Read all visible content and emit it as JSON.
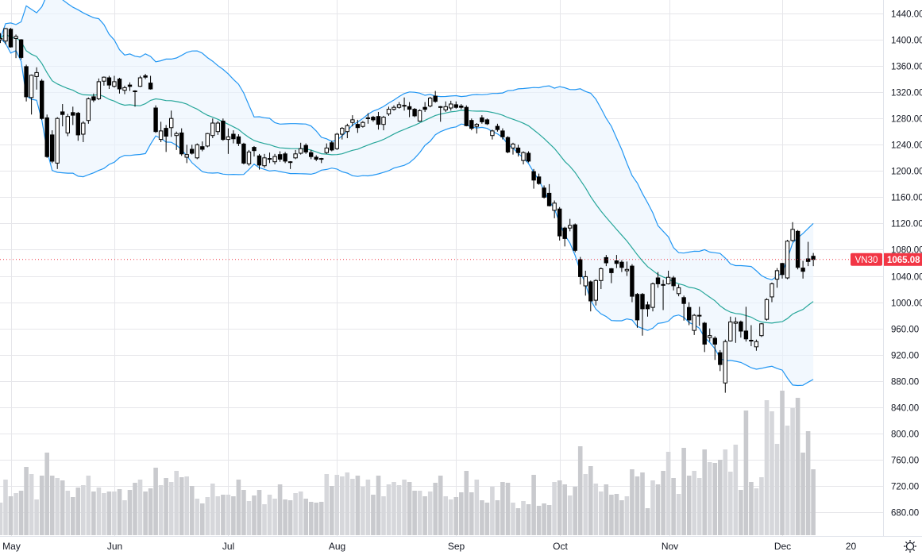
{
  "chart_data": {
    "type": "candlestick",
    "symbol": "VN30",
    "last_price": "1065.08",
    "price_axis": {
      "ylim": [
        680,
        1440
      ],
      "ticks": [
        "1440.00",
        "1400.00",
        "1360.00",
        "1320.00",
        "1280.00",
        "1240.00",
        "1200.00",
        "1160.00",
        "1120.00",
        "1080.00",
        "1040.00",
        "1000.00",
        "960.00",
        "920.00",
        "880.00",
        "840.00",
        "800.00",
        "760.00",
        "720.00",
        "680.00"
      ]
    },
    "x_ticks": [
      {
        "label": "May",
        "index": 2
      },
      {
        "label": "Jun",
        "index": 22
      },
      {
        "label": "Jul",
        "index": 44
      },
      {
        "label": "Aug",
        "index": 65
      },
      {
        "label": "Sep",
        "index": 88
      },
      {
        "label": "Oct",
        "index": 108
      },
      {
        "label": "Nov",
        "index": 129.2
      },
      {
        "label": "Dec",
        "index": 151
      },
      {
        "label": "20",
        "index": 164.2
      }
    ],
    "indicators": {
      "bollinger": {
        "period": 20,
        "stddev": 2
      }
    },
    "grid": true,
    "colors": {
      "up_body": "#ffffff",
      "down_body": "#000000",
      "wick": "#000000",
      "band": "#2196f3",
      "band_fill": "#e9f3fd",
      "basis": "#26a69a",
      "volume_up": "#d6d7db",
      "volume_down": "#c9cace",
      "price_label": "#f23645",
      "grid": "#e6e6ea"
    },
    "ohlc": [
      [
        1400,
        1410,
        1395,
        1402
      ],
      [
        1398,
        1418,
        1393,
        1417
      ],
      [
        1416,
        1418,
        1388,
        1389
      ],
      [
        1402,
        1408,
        1372,
        1405
      ],
      [
        1400,
        1401,
        1370,
        1373
      ],
      [
        1359,
        1362,
        1306,
        1313
      ],
      [
        1312,
        1347,
        1286,
        1346
      ],
      [
        1344,
        1358,
        1324,
        1350
      ],
      [
        1337,
        1340,
        1278,
        1280
      ],
      [
        1281,
        1286,
        1220,
        1222
      ],
      [
        1255,
        1262,
        1212,
        1215
      ],
      [
        1212,
        1282,
        1203,
        1280
      ],
      [
        1290,
        1302,
        1268,
        1286
      ],
      [
        1258,
        1287,
        1253,
        1283
      ],
      [
        1289,
        1298,
        1270,
        1285
      ],
      [
        1288,
        1290,
        1246,
        1255
      ],
      [
        1256,
        1276,
        1244,
        1273
      ],
      [
        1277,
        1312,
        1272,
        1310
      ],
      [
        1313,
        1318,
        1305,
        1308
      ],
      [
        1310,
        1341,
        1308,
        1336
      ],
      [
        1337,
        1344,
        1330,
        1343
      ],
      [
        1342,
        1345,
        1325,
        1331
      ],
      [
        1329,
        1345,
        1327,
        1336
      ],
      [
        1340,
        1342,
        1318,
        1325
      ],
      [
        1323,
        1330,
        1317,
        1327
      ],
      [
        1331,
        1335,
        1322,
        1329
      ],
      [
        1322,
        1323,
        1298,
        1321
      ],
      [
        1329,
        1345,
        1328,
        1342
      ],
      [
        1345,
        1348,
        1340,
        1343
      ],
      [
        1334,
        1345,
        1324,
        1325
      ],
      [
        1296,
        1300,
        1258,
        1260
      ],
      [
        1248,
        1275,
        1244,
        1261
      ],
      [
        1265,
        1270,
        1229,
        1253
      ],
      [
        1266,
        1292,
        1252,
        1280
      ],
      [
        1254,
        1260,
        1232,
        1257
      ],
      [
        1258,
        1265,
        1223,
        1226
      ],
      [
        1221,
        1240,
        1212,
        1225
      ],
      [
        1233,
        1240,
        1225,
        1227
      ],
      [
        1220,
        1242,
        1218,
        1240
      ],
      [
        1237,
        1245,
        1230,
        1233
      ],
      [
        1238,
        1258,
        1236,
        1257
      ],
      [
        1254,
        1280,
        1250,
        1273
      ],
      [
        1260,
        1276,
        1255,
        1273
      ],
      [
        1276,
        1280,
        1246,
        1248
      ],
      [
        1248,
        1265,
        1226,
        1252
      ],
      [
        1256,
        1262,
        1242,
        1249
      ],
      [
        1252,
        1256,
        1238,
        1242
      ],
      [
        1241,
        1243,
        1210,
        1212
      ],
      [
        1211,
        1232,
        1208,
        1229
      ],
      [
        1236,
        1238,
        1222,
        1231
      ],
      [
        1223,
        1226,
        1202,
        1209
      ],
      [
        1208,
        1226,
        1205,
        1220
      ],
      [
        1218,
        1228,
        1212,
        1219
      ],
      [
        1214,
        1226,
        1210,
        1222
      ],
      [
        1225,
        1230,
        1214,
        1218
      ],
      [
        1226,
        1229,
        1212,
        1215
      ],
      [
        1214,
        1215,
        1203,
        1213
      ],
      [
        1220,
        1232,
        1218,
        1226
      ],
      [
        1227,
        1243,
        1225,
        1234
      ],
      [
        1239,
        1242,
        1226,
        1229
      ],
      [
        1228,
        1232,
        1218,
        1222
      ],
      [
        1221,
        1224,
        1215,
        1218
      ],
      [
        1219,
        1220,
        1212,
        1218
      ],
      [
        1228,
        1242,
        1226,
        1235
      ],
      [
        1243,
        1246,
        1230,
        1232
      ],
      [
        1234,
        1258,
        1232,
        1256
      ],
      [
        1256,
        1267,
        1248,
        1265
      ],
      [
        1260,
        1272,
        1250,
        1269
      ],
      [
        1274,
        1285,
        1268,
        1278
      ],
      [
        1271,
        1278,
        1258,
        1266
      ],
      [
        1268,
        1276,
        1266,
        1274
      ],
      [
        1280,
        1288,
        1272,
        1281
      ],
      [
        1282,
        1284,
        1275,
        1278
      ],
      [
        1283,
        1290,
        1263,
        1271
      ],
      [
        1271,
        1284,
        1262,
        1282
      ],
      [
        1287,
        1298,
        1284,
        1294
      ],
      [
        1294,
        1300,
        1292,
        1297
      ],
      [
        1297,
        1305,
        1295,
        1301
      ],
      [
        1299,
        1312,
        1292,
        1300
      ],
      [
        1298,
        1305,
        1282,
        1294
      ],
      [
        1294,
        1296,
        1282,
        1284
      ],
      [
        1276,
        1294,
        1275,
        1292
      ],
      [
        1297,
        1305,
        1290,
        1294
      ],
      [
        1299,
        1313,
        1297,
        1311
      ],
      [
        1314,
        1322,
        1304,
        1306
      ],
      [
        1298,
        1299,
        1275,
        1297
      ],
      [
        1293,
        1306,
        1290,
        1298
      ],
      [
        1296,
        1307,
        1292,
        1302
      ],
      [
        1301,
        1306,
        1295,
        1297
      ],
      [
        1299,
        1302,
        1294,
        1297
      ],
      [
        1297,
        1300,
        1268,
        1269
      ],
      [
        1277,
        1280,
        1262,
        1265
      ],
      [
        1268,
        1273,
        1257,
        1271
      ],
      [
        1281,
        1285,
        1272,
        1275
      ],
      [
        1278,
        1280,
        1270,
        1272
      ],
      [
        1254,
        1263,
        1248,
        1261
      ],
      [
        1268,
        1272,
        1260,
        1263
      ],
      [
        1261,
        1265,
        1248,
        1252
      ],
      [
        1251,
        1253,
        1227,
        1229
      ],
      [
        1235,
        1243,
        1225,
        1241
      ],
      [
        1235,
        1240,
        1222,
        1228
      ],
      [
        1216,
        1230,
        1210,
        1228
      ],
      [
        1227,
        1230,
        1213,
        1215
      ],
      [
        1199,
        1203,
        1173,
        1186
      ],
      [
        1191,
        1196,
        1179,
        1181
      ],
      [
        1174,
        1178,
        1158,
        1160
      ],
      [
        1166,
        1180,
        1146,
        1147
      ],
      [
        1140,
        1155,
        1128,
        1151
      ],
      [
        1142,
        1145,
        1094,
        1101
      ],
      [
        1113,
        1115,
        1085,
        1097
      ],
      [
        1113,
        1127,
        1108,
        1117
      ],
      [
        1118,
        1120,
        1076,
        1079
      ],
      [
        1065,
        1069,
        1027,
        1039
      ],
      [
        1025,
        1048,
        1010,
        1039
      ],
      [
        1031,
        1033,
        986,
        1002
      ],
      [
        1003,
        1035,
        995,
        1033
      ],
      [
        1033,
        1053,
        1020,
        1051
      ],
      [
        1068,
        1072,
        1055,
        1060
      ],
      [
        1051,
        1052,
        1029,
        1045
      ],
      [
        1063,
        1072,
        1052,
        1059
      ],
      [
        1061,
        1064,
        1046,
        1053
      ],
      [
        1048,
        1062,
        1040,
        1050
      ],
      [
        1055,
        1058,
        1000,
        1009
      ],
      [
        1012,
        1014,
        961,
        973
      ],
      [
        1012,
        1014,
        949,
        990
      ],
      [
        996,
        1001,
        978,
        990
      ],
      [
        992,
        1030,
        986,
        1028
      ],
      [
        1037,
        1046,
        1022,
        1028
      ],
      [
        1027,
        1034,
        988,
        1026
      ],
      [
        1028,
        1048,
        1027,
        1038
      ],
      [
        1037,
        1040,
        1018,
        1025
      ],
      [
        1013,
        1027,
        1009,
        1022
      ],
      [
        1007,
        1010,
        972,
        998
      ],
      [
        992,
        1000,
        965,
        973
      ],
      [
        957,
        982,
        950,
        980
      ],
      [
        979,
        993,
        964,
        980
      ],
      [
        968,
        970,
        924,
        936
      ],
      [
        946,
        960,
        940,
        949
      ],
      [
        945,
        948,
        912,
        936
      ],
      [
        923,
        927,
        895,
        905
      ],
      [
        877,
        943,
        862,
        940
      ],
      [
        941,
        978,
        940,
        970
      ],
      [
        968,
        977,
        938,
        970
      ],
      [
        970,
        972,
        946,
        956
      ],
      [
        956,
        993,
        940,
        944
      ],
      [
        942,
        965,
        933,
        941
      ],
      [
        932,
        943,
        926,
        940
      ],
      [
        949,
        968,
        947,
        967
      ],
      [
        974,
        1006,
        972,
        1004
      ],
      [
        1008,
        1030,
        1000,
        1028
      ],
      [
        1035,
        1052,
        1022,
        1048
      ],
      [
        1059,
        1060,
        1036,
        1042
      ],
      [
        1037,
        1095,
        1035,
        1093
      ],
      [
        1094,
        1122,
        1092,
        1111
      ],
      [
        1108,
        1110,
        1050,
        1053
      ],
      [
        1052,
        1063,
        1036,
        1047
      ],
      [
        1066,
        1092,
        1055,
        1062
      ],
      [
        1070,
        1075,
        1055,
        1065.08
      ]
    ],
    "volume": [
      41,
      70,
      49,
      53,
      56,
      86,
      77,
      45,
      75,
      104,
      75,
      72,
      69,
      56,
      48,
      60,
      63,
      75,
      55,
      60,
      53,
      55,
      55,
      58,
      44,
      57,
      66,
      70,
      55,
      59,
      85,
      63,
      72,
      67,
      81,
      73,
      74,
      62,
      46,
      40,
      48,
      65,
      49,
      51,
      51,
      49,
      70,
      57,
      43,
      50,
      57,
      39,
      51,
      46,
      64,
      45,
      44,
      53,
      55,
      46,
      42,
      41,
      42,
      77,
      62,
      76,
      74,
      79,
      71,
      75,
      61,
      70,
      51,
      75,
      49,
      64,
      67,
      63,
      70,
      67,
      56,
      56,
      49,
      55,
      66,
      75,
      49,
      45,
      48,
      54,
      81,
      54,
      70,
      44,
      41,
      61,
      44,
      67,
      66,
      41,
      34,
      43,
      39,
      76,
      37,
      40,
      38,
      67,
      69,
      64,
      50,
      61,
      112,
      77,
      87,
      65,
      55,
      64,
      51,
      52,
      44,
      49,
      83,
      74,
      79,
      34,
      69,
      64,
      81,
      105,
      72,
      52,
      110,
      75,
      81,
      72,
      108,
      92,
      91,
      95,
      108,
      80,
      114,
      57,
      157,
      67,
      59,
      73,
      170,
      156,
      115,
      182,
      138,
      160,
      173,
      104,
      131,
      83
    ]
  },
  "icons": {
    "settings": "gear-icon"
  }
}
